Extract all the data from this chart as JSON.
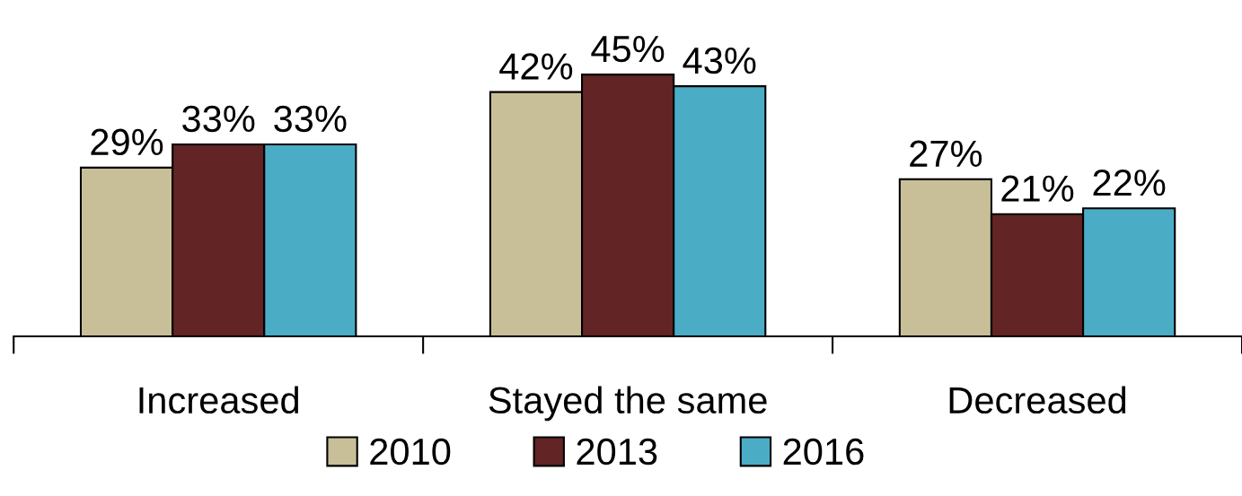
{
  "chart_data": {
    "type": "bar",
    "categories": [
      "Increased",
      "Stayed the same",
      "Decreased"
    ],
    "series": [
      {
        "name": "2010",
        "color": "#c8bf98",
        "values": [
          29,
          42,
          27
        ],
        "value_labels": [
          "29%",
          "42%",
          "27%"
        ]
      },
      {
        "name": "2013",
        "color": "#622424",
        "values": [
          33,
          45,
          21
        ],
        "value_labels": [
          "33%",
          "45%",
          "21%"
        ]
      },
      {
        "name": "2016",
        "color": "#4bacc6",
        "values": [
          33,
          43,
          22
        ],
        "value_labels": [
          "33%",
          "43%",
          "22%"
        ]
      }
    ],
    "legend": "bottom",
    "grid": false
  }
}
